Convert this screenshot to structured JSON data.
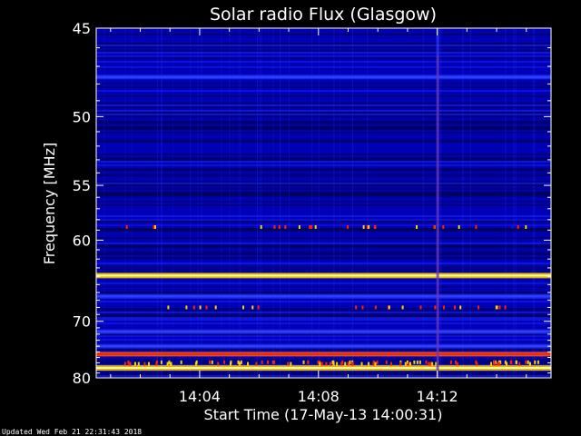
{
  "chart_data": {
    "type": "heatmap",
    "title": "Solar radio Flux (Glasgow)",
    "xlabel": "Start Time (17-May-13 14:00:31)",
    "ylabel": "Frequency [MHz]",
    "x_start": "14:00:31",
    "x_end": "14:15:50",
    "x_ticks": [
      "14:04",
      "14:08",
      "14:12"
    ],
    "ylim": [
      45,
      80
    ],
    "y_reversed": true,
    "y_ticks": [
      45,
      50,
      55,
      60,
      70,
      80
    ],
    "colormap": [
      "#000050",
      "#0000c8",
      "#3040ff",
      "#ff2000",
      "#ffd000",
      "#ffffa0"
    ],
    "bright_bands_mhz": [
      {
        "freq": 63.9,
        "intensity": "max"
      },
      {
        "freq": 78.0,
        "intensity": "max"
      },
      {
        "freq": 75.4,
        "intensity": "high"
      },
      {
        "freq": 47.6,
        "intensity": "medium"
      },
      {
        "freq": 66.5,
        "intensity": "medium"
      },
      {
        "freq": 71.6,
        "intensity": "medium"
      },
      {
        "freq": 74.0,
        "intensity": "medium"
      }
    ],
    "vertical_feature_time": "14:12:00"
  },
  "footer": "Updated Wed Feb 21 22:31:43 2018",
  "colors": {
    "background": "#000000",
    "text": "#ffffff"
  }
}
